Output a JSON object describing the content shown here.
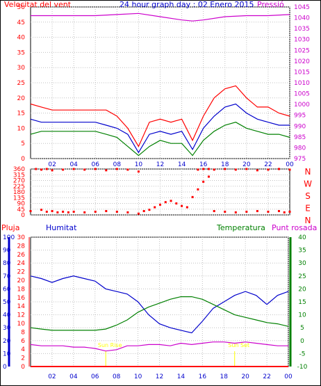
{
  "colors": {
    "wind_avg": "#0000cc",
    "wind_gust": "#ff0000",
    "wind_speed": "#008000",
    "pressure": "#cc00cc",
    "direction": "#ff0000",
    "rain": "#ff0000",
    "humidity": "#0000cc",
    "temperature": "#008000",
    "dewpoint": "#cc00cc",
    "sun": "#ffff00",
    "grid": "#c0c0c0",
    "axis": "#000000"
  },
  "chart_data": [
    {
      "type": "line",
      "title": "24 hour graph day : 02 Enero 2015",
      "ylabel_left": "Velocitat del vent",
      "ylabel_right": "Pressió",
      "left_axis": {
        "ticks": [
          "0",
          "5",
          "10",
          "15",
          "20",
          "25",
          "30",
          "35",
          "40",
          "45",
          "50"
        ],
        "ylim": [
          0,
          50
        ]
      },
      "right_axis": {
        "ticks": [
          "975",
          "980",
          "985",
          "990",
          "995",
          "1000",
          "1005",
          "1010",
          "1015",
          "1020",
          "1025",
          "1030",
          "1035",
          "1040",
          "1045"
        ],
        "ylim": [
          975,
          1045
        ]
      },
      "x_ticks": [
        "02",
        "04",
        "06",
        "08",
        "10",
        "12",
        "14",
        "16",
        "18",
        "20",
        "22",
        "00"
      ],
      "series": [
        {
          "kind": "gust",
          "axis": "left",
          "x": [
            0,
            1,
            2,
            3,
            4,
            5,
            6,
            7,
            8,
            9,
            10,
            11,
            12,
            13,
            14,
            15,
            16,
            17,
            18,
            19,
            20,
            21,
            22,
            23,
            24
          ],
          "values": [
            18,
            17,
            16,
            16,
            16,
            16,
            16,
            16,
            14,
            10,
            4,
            12,
            13,
            12,
            13,
            6,
            14,
            20,
            23,
            24,
            20,
            17,
            17,
            15,
            14
          ]
        },
        {
          "kind": "avg",
          "axis": "left",
          "x": [
            0,
            1,
            2,
            3,
            4,
            5,
            6,
            7,
            8,
            9,
            10,
            11,
            12,
            13,
            14,
            15,
            16,
            17,
            18,
            19,
            20,
            21,
            22,
            23,
            24
          ],
          "values": [
            13,
            12,
            12,
            12,
            12,
            12,
            12,
            11,
            10,
            8,
            2,
            8,
            9,
            8,
            9,
            3,
            10,
            14,
            17,
            18,
            15,
            13,
            12,
            11,
            11
          ]
        },
        {
          "kind": "speed",
          "axis": "left",
          "x": [
            0,
            1,
            2,
            3,
            4,
            5,
            6,
            7,
            8,
            9,
            10,
            11,
            12,
            13,
            14,
            15,
            16,
            17,
            18,
            19,
            20,
            21,
            22,
            23,
            24
          ],
          "values": [
            8,
            9,
            9,
            9,
            9,
            9,
            9,
            8,
            7,
            4,
            1,
            4,
            6,
            5,
            5,
            1,
            6,
            9,
            11,
            12,
            10,
            9,
            8,
            8,
            7
          ]
        },
        {
          "kind": "pressure",
          "axis": "right",
          "x": [
            0,
            2,
            4,
            6,
            8,
            10,
            12,
            14,
            15,
            16,
            18,
            20,
            22,
            24
          ],
          "values": [
            1041,
            1041,
            1041,
            1041,
            1041.5,
            1042,
            1040.5,
            1039,
            1038.5,
            1039,
            1040.5,
            1041,
            1041,
            1041.5
          ]
        }
      ]
    },
    {
      "type": "scatter",
      "title": "",
      "left_axis": {
        "ticks": [
          "0",
          "45",
          "90",
          "135",
          "180",
          "225",
          "270",
          "315",
          "360"
        ],
        "ylim": [
          0,
          360
        ]
      },
      "right_labels": [
        "N",
        "W",
        "S",
        "E",
        "N"
      ],
      "series": [
        {
          "kind": "direction",
          "x": [
            0,
            1,
            1.5,
            2,
            2.5,
            3,
            3.5,
            4,
            5,
            6,
            7,
            8,
            9,
            10,
            10.5,
            11,
            11.5,
            12,
            12.5,
            13,
            13.5,
            14,
            14.5,
            15,
            15.5,
            16,
            16.5,
            17,
            18,
            19,
            20,
            21,
            22,
            23,
            23.5,
            24
          ],
          "values": [
            30,
            40,
            25,
            30,
            20,
            25,
            20,
            25,
            20,
            25,
            30,
            25,
            20,
            10,
            30,
            40,
            60,
            80,
            100,
            110,
            90,
            70,
            60,
            140,
            200,
            260,
            300,
            30,
            25,
            20,
            25,
            30,
            25,
            30,
            20,
            25
          ]
        },
        {
          "kind": "direction",
          "x": [
            0.5,
            1,
            1.5,
            2,
            3,
            4,
            5,
            6,
            7,
            8,
            9,
            10,
            15.5,
            16,
            16.5,
            17,
            18,
            19,
            20,
            21,
            22,
            23,
            24
          ],
          "values": [
            360,
            355,
            360,
            350,
            355,
            360,
            355,
            360,
            350,
            360,
            355,
            340,
            355,
            360,
            360,
            355,
            360,
            355,
            360,
            350,
            355,
            360,
            355
          ]
        }
      ]
    },
    {
      "type": "line",
      "title": "",
      "labels": {
        "rain": "Pluja",
        "humidity": "Humitat",
        "temperature": "Temperatura",
        "dewpoint": "Punt rosada",
        "sunrise": "Sun Rise",
        "sunset": "Sun Set"
      },
      "rain_axis": {
        "ticks": [
          "0",
          "2",
          "4",
          "6",
          "8",
          "10",
          "12",
          "14",
          "16",
          "18",
          "20",
          "22",
          "24",
          "26",
          "28",
          "30"
        ],
        "ylim": [
          0,
          30
        ]
      },
      "humidity_axis": {
        "ticks": [
          "0",
          "10",
          "20",
          "30",
          "40",
          "50",
          "60",
          "70",
          "80",
          "90",
          "100"
        ],
        "ylim": [
          0,
          100
        ]
      },
      "temperature_axis": {
        "ticks": [
          "-10",
          "-5",
          "0",
          "5",
          "10",
          "15",
          "20",
          "25",
          "30",
          "35",
          "40"
        ],
        "ylim": [
          -10,
          40
        ]
      },
      "x_ticks": [
        "02",
        "04",
        "06",
        "08",
        "10",
        "12",
        "14",
        "16",
        "18",
        "20",
        "22",
        "00"
      ],
      "sunrise": 7.0,
      "sunset": 19.0,
      "series": [
        {
          "kind": "humidity",
          "axis": "humidity",
          "x": [
            0,
            1,
            2,
            3,
            4,
            5,
            6,
            7,
            8,
            9,
            10,
            10.5,
            11,
            12,
            13,
            14,
            15,
            16,
            17,
            18,
            19,
            20,
            21,
            22,
            23,
            24
          ],
          "values": [
            70,
            68,
            65,
            68,
            70,
            68,
            66,
            60,
            58,
            56,
            50,
            45,
            40,
            33,
            30,
            28,
            26,
            35,
            45,
            50,
            55,
            58,
            55,
            48,
            55,
            58
          ]
        },
        {
          "kind": "temperature",
          "axis": "temperature",
          "x": [
            0,
            1,
            2,
            3,
            4,
            5,
            6,
            7,
            8,
            9,
            10,
            11,
            12,
            13,
            14,
            15,
            16,
            17,
            18,
            19,
            20,
            21,
            22,
            23,
            24
          ],
          "values": [
            5,
            4.5,
            4,
            4,
            4,
            4,
            4,
            4.5,
            6,
            8,
            11,
            13,
            14.5,
            16,
            17,
            17,
            16,
            14,
            12,
            10,
            9,
            8,
            7,
            6.5,
            5.5
          ]
        },
        {
          "kind": "dewpoint",
          "axis": "temperature",
          "x": [
            0,
            1,
            2,
            3,
            4,
            5,
            6,
            7,
            8,
            9,
            10,
            11,
            12,
            13,
            14,
            15,
            16,
            17,
            18,
            19,
            20,
            21,
            22,
            23,
            24
          ],
          "values": [
            -1.5,
            -2,
            -2,
            -2,
            -2.5,
            -2.5,
            -3,
            -4,
            -3.5,
            -2,
            -2,
            -1.5,
            -1.5,
            -2,
            -1,
            -1.5,
            -1,
            -0.5,
            -0.5,
            -1,
            -0.5,
            -1,
            -1.5,
            -2,
            -2
          ]
        },
        {
          "kind": "rain",
          "axis": "rain",
          "x": [
            0,
            24
          ],
          "values": [
            0,
            0
          ]
        }
      ]
    }
  ]
}
